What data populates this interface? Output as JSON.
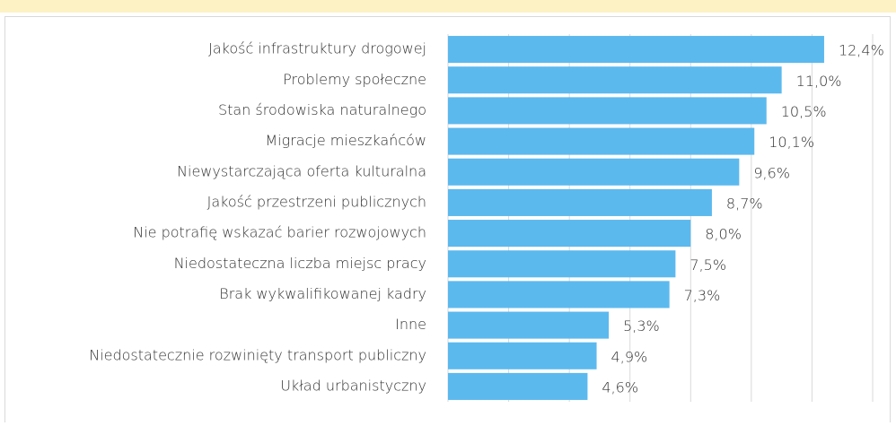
{
  "chart_data": {
    "type": "bar",
    "orientation": "horizontal",
    "categories": [
      "Jakość infrastruktury drogowej",
      "Problemy społeczne",
      "Stan środowiska naturalnego",
      "Migracje mieszkańców",
      "Niewystarczająca oferta kulturalna",
      "Jakość przestrzeni publicznych",
      "Nie potrafię wskazać barier rozwojowych",
      "Niedostateczna liczba miejsc pracy",
      "Brak wykwalifikowanej kadry",
      "Inne",
      "Niedostatecznie rozwinięty transport publiczny",
      "Układ urbanistyczny"
    ],
    "values": [
      12.4,
      11.0,
      10.5,
      10.1,
      9.6,
      8.7,
      8.0,
      7.5,
      7.3,
      5.3,
      4.9,
      4.6
    ],
    "value_labels": [
      "12,4%",
      "11,0%",
      "10,5%",
      "10,1%",
      "9,6%",
      "8,7%",
      "8,0%",
      "7,5%",
      "7,3%",
      "5,3%",
      "4,9%",
      "4,6%"
    ],
    "color": "#5bb9ee",
    "xlim": [
      0,
      14
    ],
    "xticks": [
      0,
      2,
      4,
      6,
      8,
      10,
      12,
      14
    ],
    "grid": true
  }
}
